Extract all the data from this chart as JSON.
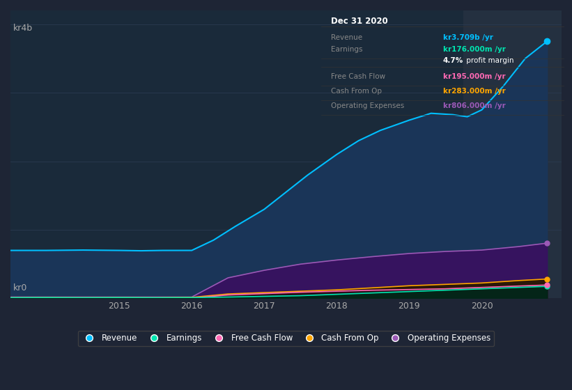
{
  "bg_color": "#1e2535",
  "plot_bg_color": "#1a2a3a",
  "highlight_bg_color": "#243040",
  "grid_color": "#2a3a50",
  "ylabel_kr0": "kr0",
  "ylabel_kr4b": "kr4b",
  "x_ticks": [
    2015,
    2016,
    2017,
    2018,
    2019,
    2020
  ],
  "series": {
    "Revenue": {
      "color": "#00bfff",
      "fill_color": "#1a3a5c",
      "x": [
        2013.5,
        2014.0,
        2014.5,
        2015.0,
        2015.3,
        2015.6,
        2016.0,
        2016.3,
        2016.6,
        2017.0,
        2017.3,
        2017.6,
        2018.0,
        2018.3,
        2018.6,
        2019.0,
        2019.3,
        2019.6,
        2019.8,
        2020.0,
        2020.3,
        2020.6,
        2020.9
      ],
      "y": [
        700,
        700,
        705,
        700,
        695,
        700,
        700,
        850,
        1050,
        1300,
        1550,
        1800,
        2100,
        2300,
        2450,
        2600,
        2700,
        2680,
        2650,
        2750,
        3100,
        3500,
        3750
      ]
    },
    "Earnings": {
      "color": "#00e5b0",
      "fill_color": "#003828",
      "x": [
        2013.5,
        2014.0,
        2014.5,
        2015.0,
        2015.5,
        2016.0,
        2016.5,
        2017.0,
        2017.5,
        2018.0,
        2018.5,
        2019.0,
        2019.5,
        2020.0,
        2020.5,
        2020.9
      ],
      "y": [
        10,
        12,
        10,
        12,
        10,
        12,
        20,
        30,
        40,
        60,
        80,
        100,
        120,
        140,
        160,
        176
      ]
    },
    "Free Cash Flow": {
      "color": "#ff69b4",
      "fill_color": "#3a1428",
      "x": [
        2013.5,
        2014.0,
        2014.5,
        2015.0,
        2015.5,
        2016.0,
        2016.5,
        2017.0,
        2017.5,
        2018.0,
        2018.5,
        2019.0,
        2019.5,
        2020.0,
        2020.5,
        2020.9
      ],
      "y": [
        5,
        5,
        5,
        5,
        5,
        5,
        50,
        70,
        90,
        105,
        120,
        130,
        140,
        160,
        180,
        195
      ]
    },
    "Cash From Op": {
      "color": "#ffa500",
      "fill_color": "#3a2800",
      "x": [
        2013.5,
        2014.0,
        2014.5,
        2015.0,
        2015.5,
        2016.0,
        2016.5,
        2017.0,
        2017.5,
        2018.0,
        2018.5,
        2019.0,
        2019.5,
        2020.0,
        2020.5,
        2020.9
      ],
      "y": [
        10,
        12,
        10,
        12,
        10,
        15,
        65,
        85,
        105,
        125,
        155,
        185,
        205,
        225,
        260,
        283
      ]
    },
    "Operating Expenses": {
      "color": "#9b59b6",
      "fill_color": "#3a1060",
      "x": [
        2013.5,
        2014.0,
        2014.5,
        2015.0,
        2015.5,
        2016.0,
        2016.5,
        2017.0,
        2017.5,
        2018.0,
        2018.5,
        2019.0,
        2019.5,
        2020.0,
        2020.5,
        2020.9
      ],
      "y": [
        20,
        20,
        20,
        20,
        20,
        20,
        300,
        410,
        500,
        560,
        610,
        655,
        685,
        705,
        755,
        806
      ]
    }
  },
  "info_box": {
    "title": "Dec 31 2020",
    "bg_color": "#0d0d0d",
    "border_color": "#444444",
    "rows": [
      {
        "label": "Revenue",
        "value": "kr3.709b /yr",
        "value_color": "#00bfff",
        "label_color": "#888888"
      },
      {
        "label": "Earnings",
        "value": "kr176.000m /yr",
        "value_color": "#00e5b0",
        "label_color": "#888888"
      },
      {
        "label": "",
        "value": "4.7% profit margin",
        "value_color": "#dddddd",
        "label_color": "#888888",
        "bold_prefix": "4.7%"
      },
      {
        "label": "Free Cash Flow",
        "value": "kr195.000m /yr",
        "value_color": "#ff69b4",
        "label_color": "#888888"
      },
      {
        "label": "Cash From Op",
        "value": "kr283.000m /yr",
        "value_color": "#ffa500",
        "label_color": "#888888"
      },
      {
        "label": "Operating Expenses",
        "value": "kr806.000m /yr",
        "value_color": "#9b59b6",
        "label_color": "#888888"
      }
    ]
  },
  "legend": [
    {
      "label": "Revenue",
      "color": "#00bfff"
    },
    {
      "label": "Earnings",
      "color": "#00e5b0"
    },
    {
      "label": "Free Cash Flow",
      "color": "#ff69b4"
    },
    {
      "label": "Cash From Op",
      "color": "#ffa500"
    },
    {
      "label": "Operating Expenses",
      "color": "#9b59b6"
    }
  ],
  "xlim": [
    2013.5,
    2021.1
  ],
  "ylim": [
    0,
    4200
  ],
  "highlight_x_start": 2019.75,
  "highlight_x_end": 2021.1
}
